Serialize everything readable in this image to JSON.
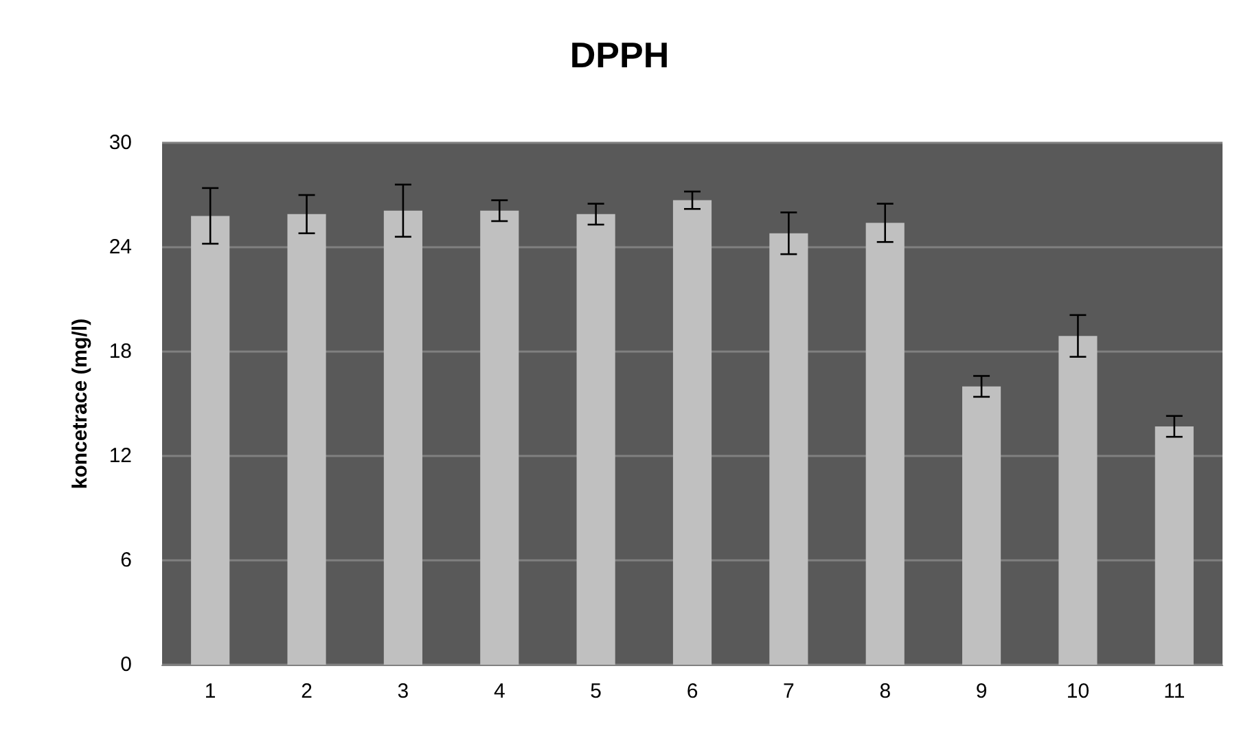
{
  "chart_data": {
    "type": "bar",
    "title": "DPPH",
    "ylabel": "koncetrace (mg/l)",
    "categories": [
      "1",
      "2",
      "3",
      "4",
      "5",
      "6",
      "7",
      "8",
      "9",
      "10",
      "11"
    ],
    "values": [
      25.8,
      25.9,
      26.1,
      26.1,
      25.9,
      26.7,
      24.8,
      25.4,
      16.0,
      18.9,
      13.7
    ],
    "errors": [
      1.6,
      1.1,
      1.5,
      0.6,
      0.6,
      0.5,
      1.2,
      1.1,
      0.6,
      1.2,
      0.6
    ],
    "color": "#c0c0c0",
    "ylim": [
      0,
      30
    ],
    "yticks": [
      0,
      6,
      12,
      18,
      24,
      30
    ],
    "grid": "y"
  }
}
